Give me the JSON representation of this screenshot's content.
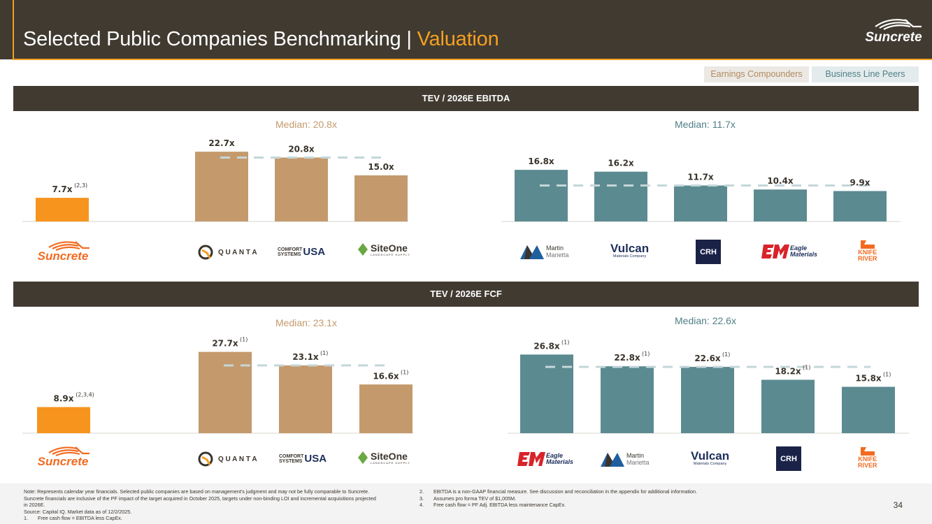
{
  "header": {
    "title_main": "Selected Public Companies Benchmarking",
    "title_sep": "|",
    "title_accent": "Valuation",
    "brand": "Suncrete"
  },
  "legend": {
    "earnings_label": "Earnings Compounders",
    "peers_label": "Business Line Peers"
  },
  "colors": {
    "suncrete": "#f7941d",
    "earnings": "#c49a6c",
    "peers": "#5b8b91",
    "median_line": "#c5d6d9",
    "header_bg": "#403a31",
    "accent": "#f5a01f"
  },
  "sections": [
    {
      "title": "TEV / 2026E EBITDA",
      "median_earnings": "Median: 20.8x",
      "median_peers": "Median: 11.7x"
    },
    {
      "title": "TEV / 2026E FCF",
      "median_earnings": "Median: 23.1x",
      "median_peers": "Median: 22.6x"
    }
  ],
  "chart_data": [
    {
      "type": "bar",
      "title": "TEV / 2026E EBITDA",
      "categories": [
        "Suncrete",
        "Quanta",
        "Comfort Systems USA",
        "SiteOne",
        "Martin Marietta",
        "Vulcan",
        "CRH",
        "Eagle Materials",
        "Knife River"
      ],
      "groups": [
        "suncrete",
        "earnings",
        "earnings",
        "earnings",
        "peers",
        "peers",
        "peers",
        "peers",
        "peers"
      ],
      "values": [
        7.7,
        22.7,
        20.8,
        15.0,
        16.8,
        16.2,
        11.7,
        10.4,
        9.9
      ],
      "labels": [
        "7.7x",
        "22.7x",
        "20.8x",
        "15.0x",
        "16.8x",
        "16.2x",
        "11.7x",
        "10.4x",
        "9.9x"
      ],
      "footnotes": [
        "(2,3)",
        "",
        "",
        "",
        "",
        "",
        "",
        "",
        ""
      ],
      "medians": {
        "earnings": 20.8,
        "peers": 11.7
      },
      "ylim": [
        0,
        25
      ]
    },
    {
      "type": "bar",
      "title": "TEV / 2026E FCF",
      "categories": [
        "Suncrete",
        "Quanta",
        "Comfort Systems USA",
        "SiteOne",
        "Eagle Materials",
        "Martin Marietta",
        "Vulcan",
        "CRH",
        "Knife River"
      ],
      "groups": [
        "suncrete",
        "earnings",
        "earnings",
        "earnings",
        "peers",
        "peers",
        "peers",
        "peers",
        "peers"
      ],
      "values": [
        8.9,
        27.7,
        23.1,
        16.6,
        26.8,
        22.8,
        22.6,
        18.2,
        15.8
      ],
      "labels": [
        "8.9x",
        "27.7x",
        "23.1x",
        "16.6x",
        "26.8x",
        "22.8x",
        "22.6x",
        "18.2x",
        "15.8x"
      ],
      "footnotes": [
        "(2,3,4)",
        "(1)",
        "(1)",
        "(1)",
        "(1)",
        "(1)",
        "(1)",
        "(1)",
        "(1)"
      ],
      "medians": {
        "earnings": 23.1,
        "peers": 22.6
      },
      "ylim": [
        0,
        30
      ]
    }
  ],
  "logos": {
    "suncrete": "Suncrete",
    "quanta": "Q U A N T A",
    "comfort_top": "COMFORT",
    "comfort_bottom": "SYSTEMS",
    "comfort_usa": "USA",
    "siteone": "SiteOne",
    "siteone_sub": "LANDSCAPE SUPPLY",
    "martin": "Martin",
    "marietta": "Marietta",
    "vulcan": "Vulcan",
    "vulcan_sub": "Materials Company",
    "crh": "CRH",
    "eagle": "Eagle",
    "eagle_sub": "Materials",
    "knife": "KNIFE",
    "river": "RIVER"
  },
  "notes": {
    "left": [
      "Note: Represents calendar year financials. Selected public companies are based on management’s judgment and may not be fully comparable to Suncrete.",
      "Suncrete financials are inclusive of the PF impact of the target acquired in October 2025, targets under non-binding LOI and incremental acquisitions projected",
      "in 2026E.",
      "Source: Capital IQ. Market data as of 12/2/2025."
    ],
    "left_fn": {
      "num": "1.",
      "text": "Free cash flow = EBITDA less CapEx."
    },
    "right_fn": [
      {
        "num": "2.",
        "text": "EBITDA is a non-GAAP financial measure. See discussion and reconciliation in the appendix for additional information."
      },
      {
        "num": "3.",
        "text": "Assumes pro forma TEV of $1,005M."
      },
      {
        "num": "4.",
        "text": "Free cash flow = PF Adj. EBITDA less maintenance CapEx."
      }
    ],
    "page": "34"
  }
}
